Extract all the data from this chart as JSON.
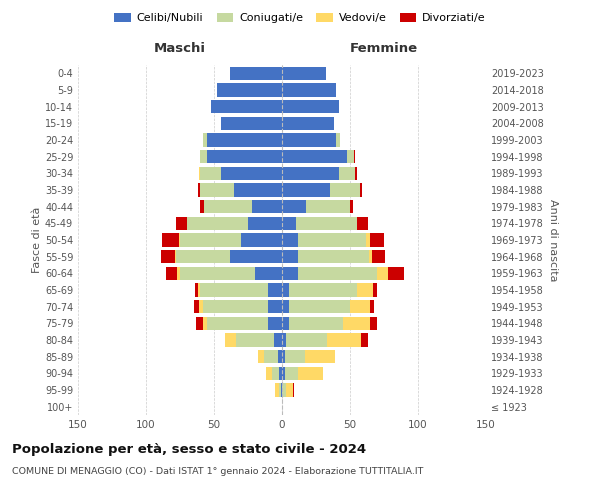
{
  "age_groups": [
    "100+",
    "95-99",
    "90-94",
    "85-89",
    "80-84",
    "75-79",
    "70-74",
    "65-69",
    "60-64",
    "55-59",
    "50-54",
    "45-49",
    "40-44",
    "35-39",
    "30-34",
    "25-29",
    "20-24",
    "15-19",
    "10-14",
    "5-9",
    "0-4"
  ],
  "birth_years": [
    "≤ 1923",
    "1924-1928",
    "1929-1933",
    "1934-1938",
    "1939-1943",
    "1944-1948",
    "1949-1953",
    "1954-1958",
    "1959-1963",
    "1964-1968",
    "1969-1973",
    "1974-1978",
    "1979-1983",
    "1984-1988",
    "1989-1993",
    "1994-1998",
    "1999-2003",
    "2004-2008",
    "2009-2013",
    "2014-2018",
    "2019-2023"
  ],
  "males": {
    "celibi": [
      0,
      1,
      2,
      3,
      6,
      10,
      10,
      10,
      20,
      38,
      30,
      25,
      22,
      35,
      45,
      55,
      55,
      45,
      52,
      48,
      38
    ],
    "coniugati": [
      0,
      1,
      5,
      10,
      28,
      45,
      48,
      50,
      55,
      40,
      45,
      45,
      35,
      25,
      15,
      5,
      3,
      0,
      0,
      0,
      0
    ],
    "vedovi": [
      0,
      3,
      5,
      5,
      8,
      3,
      3,
      2,
      2,
      1,
      1,
      0,
      0,
      0,
      1,
      0,
      0,
      0,
      0,
      0,
      0
    ],
    "divorziati": [
      0,
      0,
      0,
      0,
      0,
      5,
      4,
      2,
      8,
      10,
      12,
      8,
      3,
      2,
      0,
      0,
      0,
      0,
      0,
      0,
      0
    ]
  },
  "females": {
    "nubili": [
      0,
      0,
      2,
      2,
      3,
      5,
      5,
      5,
      12,
      12,
      12,
      10,
      18,
      35,
      42,
      48,
      40,
      38,
      42,
      40,
      32
    ],
    "coniugate": [
      0,
      3,
      10,
      15,
      30,
      40,
      45,
      50,
      58,
      52,
      50,
      45,
      32,
      22,
      12,
      5,
      3,
      0,
      0,
      0,
      0
    ],
    "vedove": [
      0,
      5,
      18,
      22,
      25,
      20,
      15,
      12,
      8,
      2,
      3,
      0,
      0,
      0,
      0,
      0,
      0,
      0,
      0,
      0,
      0
    ],
    "divorziate": [
      0,
      1,
      0,
      0,
      5,
      5,
      3,
      3,
      12,
      10,
      10,
      8,
      2,
      2,
      1,
      1,
      0,
      0,
      0,
      0,
      0
    ]
  },
  "colors": {
    "celibi": "#4472C4",
    "coniugati": "#C6D9A0",
    "vedovi": "#FFD966",
    "divorziati": "#CC0000"
  },
  "legend_labels": [
    "Celibi/Nubili",
    "Coniugati/e",
    "Vedovi/e",
    "Divorziati/e"
  ],
  "title": "Popolazione per età, sesso e stato civile - 2024",
  "subtitle": "COMUNE DI MENAGGIO (CO) - Dati ISTAT 1° gennaio 2024 - Elaborazione TUTTITALIA.IT",
  "xlabel_left": "Maschi",
  "xlabel_right": "Femmine",
  "ylabel_left": "Fasce di età",
  "ylabel_right": "Anni di nascita",
  "xlim": 150,
  "background_color": "#ffffff",
  "grid_color": "#cccccc"
}
